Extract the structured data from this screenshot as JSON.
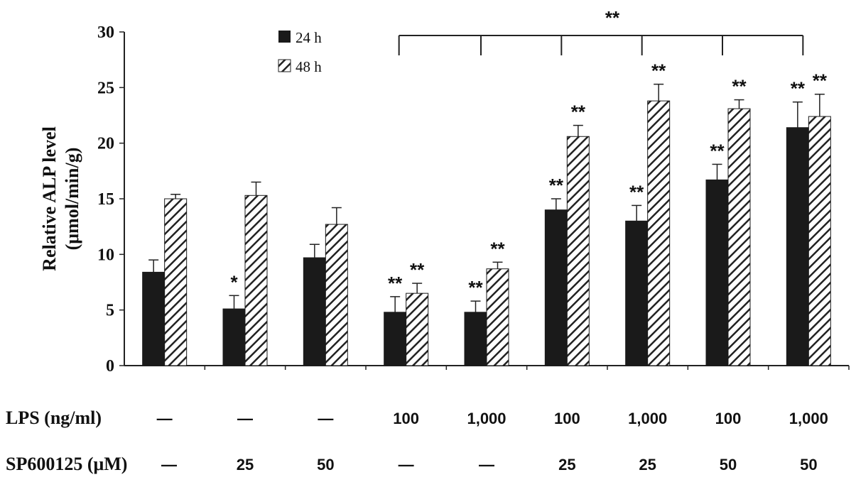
{
  "chart_data": {
    "type": "bar",
    "ylabel_line1": "Relative ALP level",
    "ylabel_line2": "(μmol/min/g)",
    "ylim": [
      0,
      30
    ],
    "yticks": [
      "0",
      "5",
      "10",
      "15",
      "20",
      "25",
      "30"
    ],
    "series": [
      {
        "name": "24 h",
        "values": [
          8.4,
          5.1,
          9.7,
          4.8,
          4.8,
          14.0,
          13.0,
          16.7,
          21.4
        ],
        "errors": [
          1.1,
          1.2,
          1.2,
          1.4,
          1.0,
          1.0,
          1.4,
          1.4,
          2.3
        ],
        "sig": [
          "",
          "*",
          "",
          "**",
          "**",
          "**",
          "**",
          "**",
          "**"
        ]
      },
      {
        "name": "48 h",
        "values": [
          15.0,
          15.3,
          12.7,
          6.5,
          8.7,
          20.6,
          23.8,
          23.1,
          22.4
        ],
        "errors": [
          0.4,
          1.2,
          1.5,
          0.9,
          0.6,
          1.0,
          1.5,
          0.8,
          2.0
        ],
        "sig": [
          "",
          "",
          "",
          "**",
          "**",
          "**",
          "**",
          "**",
          "**"
        ]
      }
    ],
    "bracket_label": "**",
    "conditions": [
      {
        "label": "LPS (ng/ml)",
        "values": [
          "—",
          "—",
          "—",
          "100",
          "1,000",
          "100",
          "1,000",
          "100",
          "1,000"
        ]
      },
      {
        "label": "SP600125 (μM)",
        "values": [
          "—",
          "25",
          "50",
          "—",
          "—",
          "25",
          "25",
          "50",
          "50"
        ]
      }
    ],
    "legend_position": "top-left",
    "colors": {
      "series1": "#1a1a1a",
      "series2_hatch": "#222222",
      "axis": "#222222"
    }
  }
}
